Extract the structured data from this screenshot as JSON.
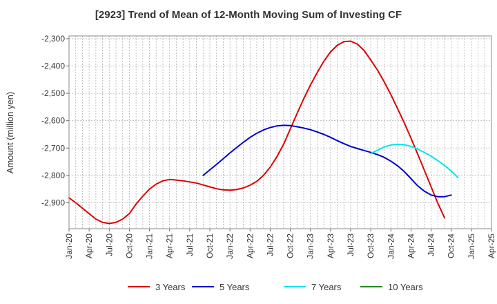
{
  "chart_data": {
    "type": "line",
    "title": "[2923]  Trend of Mean of 12-Month Moving Sum of Investing CF",
    "ylabel": "Amount (million yen)",
    "xlabel": "",
    "ylim": [
      -2995,
      -2290
    ],
    "yticks": [
      -2300,
      -2400,
      -2500,
      -2600,
      -2700,
      -2800,
      -2900
    ],
    "ytick_labels": [
      "-2,300",
      "-2,400",
      "-2,500",
      "-2,600",
      "-2,700",
      "-2,800",
      "-2,900"
    ],
    "xrange": [
      "2020-01",
      "2025-04"
    ],
    "xticks": [
      "2020-01",
      "2020-04",
      "2020-07",
      "2020-10",
      "2021-01",
      "2021-04",
      "2021-07",
      "2021-10",
      "2022-01",
      "2022-04",
      "2022-07",
      "2022-10",
      "2023-01",
      "2023-04",
      "2023-07",
      "2023-10",
      "2024-01",
      "2024-04",
      "2024-07",
      "2024-10",
      "2025-01",
      "2025-04"
    ],
    "xtick_labels": [
      "Jan-20",
      "Apr-20",
      "Jul-20",
      "Oct-20",
      "Jan-21",
      "Apr-21",
      "Jul-21",
      "Oct-21",
      "Jan-22",
      "Apr-22",
      "Jul-22",
      "Oct-22",
      "Jan-23",
      "Apr-23",
      "Jul-23",
      "Oct-23",
      "Jan-24",
      "Apr-24",
      "Jul-24",
      "Oct-24",
      "Jan-25",
      "Apr-25"
    ],
    "grid": true,
    "legend_position": "bottom",
    "series": [
      {
        "name": "3 Years",
        "color": "#dd0000",
        "points": [
          [
            "2020-01",
            -2882
          ],
          [
            "2020-02",
            -2900
          ],
          [
            "2020-03",
            -2920
          ],
          [
            "2020-04",
            -2940
          ],
          [
            "2020-05",
            -2960
          ],
          [
            "2020-06",
            -2972
          ],
          [
            "2020-07",
            -2976
          ],
          [
            "2020-08",
            -2972
          ],
          [
            "2020-09",
            -2960
          ],
          [
            "2020-10",
            -2940
          ],
          [
            "2020-11",
            -2905
          ],
          [
            "2020-12",
            -2876
          ],
          [
            "2021-01",
            -2850
          ],
          [
            "2021-02",
            -2832
          ],
          [
            "2021-03",
            -2820
          ],
          [
            "2021-04",
            -2815
          ],
          [
            "2021-05",
            -2817
          ],
          [
            "2021-06",
            -2820
          ],
          [
            "2021-07",
            -2824
          ],
          [
            "2021-08",
            -2828
          ],
          [
            "2021-09",
            -2835
          ],
          [
            "2021-10",
            -2842
          ],
          [
            "2021-11",
            -2849
          ],
          [
            "2021-12",
            -2853
          ],
          [
            "2022-01",
            -2854
          ],
          [
            "2022-02",
            -2852
          ],
          [
            "2022-03",
            -2846
          ],
          [
            "2022-04",
            -2836
          ],
          [
            "2022-05",
            -2822
          ],
          [
            "2022-06",
            -2800
          ],
          [
            "2022-07",
            -2770
          ],
          [
            "2022-08",
            -2732
          ],
          [
            "2022-09",
            -2686
          ],
          [
            "2022-10",
            -2630
          ],
          [
            "2022-11",
            -2574
          ],
          [
            "2022-12",
            -2520
          ],
          [
            "2023-01",
            -2470
          ],
          [
            "2023-02",
            -2425
          ],
          [
            "2023-03",
            -2383
          ],
          [
            "2023-04",
            -2348
          ],
          [
            "2023-05",
            -2324
          ],
          [
            "2023-06",
            -2311
          ],
          [
            "2023-07",
            -2309
          ],
          [
            "2023-08",
            -2320
          ],
          [
            "2023-09",
            -2343
          ],
          [
            "2023-10",
            -2378
          ],
          [
            "2023-11",
            -2415
          ],
          [
            "2023-12",
            -2458
          ],
          [
            "2024-01",
            -2505
          ],
          [
            "2024-02",
            -2556
          ],
          [
            "2024-03",
            -2608
          ],
          [
            "2024-04",
            -2664
          ],
          [
            "2024-05",
            -2722
          ],
          [
            "2024-06",
            -2782
          ],
          [
            "2024-07",
            -2842
          ],
          [
            "2024-08",
            -2902
          ],
          [
            "2024-09",
            -2955
          ]
        ]
      },
      {
        "name": "5 Years",
        "color": "#0000cc",
        "points": [
          [
            "2021-09",
            -2800
          ],
          [
            "2021-10",
            -2780
          ],
          [
            "2021-11",
            -2760
          ],
          [
            "2021-12",
            -2739
          ],
          [
            "2022-01",
            -2718
          ],
          [
            "2022-02",
            -2698
          ],
          [
            "2022-03",
            -2679
          ],
          [
            "2022-04",
            -2661
          ],
          [
            "2022-05",
            -2646
          ],
          [
            "2022-06",
            -2634
          ],
          [
            "2022-07",
            -2625
          ],
          [
            "2022-08",
            -2619
          ],
          [
            "2022-09",
            -2617
          ],
          [
            "2022-10",
            -2618
          ],
          [
            "2022-11",
            -2622
          ],
          [
            "2022-12",
            -2627
          ],
          [
            "2023-01",
            -2633
          ],
          [
            "2023-02",
            -2641
          ],
          [
            "2023-03",
            -2650
          ],
          [
            "2023-04",
            -2661
          ],
          [
            "2023-05",
            -2673
          ],
          [
            "2023-06",
            -2684
          ],
          [
            "2023-07",
            -2694
          ],
          [
            "2023-08",
            -2702
          ],
          [
            "2023-09",
            -2709
          ],
          [
            "2023-10",
            -2716
          ],
          [
            "2023-11",
            -2724
          ],
          [
            "2023-12",
            -2734
          ],
          [
            "2024-01",
            -2748
          ],
          [
            "2024-02",
            -2765
          ],
          [
            "2024-03",
            -2786
          ],
          [
            "2024-04",
            -2812
          ],
          [
            "2024-05",
            -2838
          ],
          [
            "2024-06",
            -2858
          ],
          [
            "2024-07",
            -2872
          ],
          [
            "2024-08",
            -2878
          ],
          [
            "2024-09",
            -2878
          ],
          [
            "2024-10",
            -2872
          ]
        ]
      },
      {
        "name": "7 Years",
        "color": "#00e5ee",
        "points": [
          [
            "2023-10",
            -2720
          ],
          [
            "2023-11",
            -2708
          ],
          [
            "2023-12",
            -2696
          ],
          [
            "2024-01",
            -2689
          ],
          [
            "2024-02",
            -2686
          ],
          [
            "2024-03",
            -2688
          ],
          [
            "2024-04",
            -2694
          ],
          [
            "2024-05",
            -2704
          ],
          [
            "2024-06",
            -2716
          ],
          [
            "2024-07",
            -2730
          ],
          [
            "2024-08",
            -2746
          ],
          [
            "2024-09",
            -2764
          ],
          [
            "2024-10",
            -2784
          ],
          [
            "2024-11",
            -2808
          ]
        ]
      },
      {
        "name": "10 Years",
        "color": "#228822",
        "points": []
      }
    ]
  }
}
